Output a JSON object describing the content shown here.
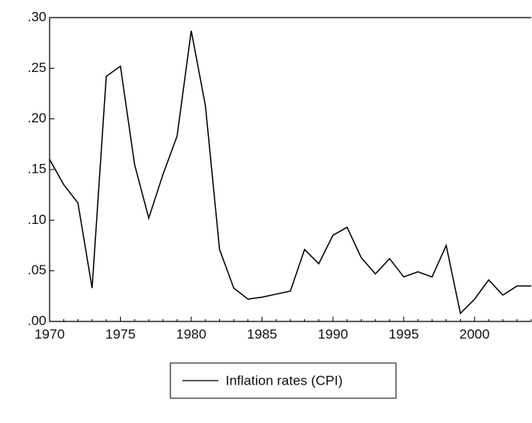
{
  "chart_data": {
    "type": "line",
    "x": [
      1970,
      1971,
      1972,
      1973,
      1974,
      1975,
      1976,
      1977,
      1978,
      1979,
      1980,
      1981,
      1982,
      1983,
      1984,
      1985,
      1986,
      1987,
      1988,
      1989,
      1990,
      1991,
      1992,
      1993,
      1994,
      1995,
      1996,
      1997,
      1998,
      1999,
      2000,
      2001,
      2002,
      2003,
      2004
    ],
    "series": [
      {
        "name": "Inflation rates (CPI)",
        "color": "#000000",
        "values": [
          0.16,
          0.135,
          0.117,
          0.033,
          0.242,
          0.252,
          0.155,
          0.102,
          0.145,
          0.183,
          0.287,
          0.213,
          0.071,
          0.033,
          0.022,
          0.024,
          0.027,
          0.03,
          0.071,
          0.057,
          0.085,
          0.093,
          0.063,
          0.047,
          0.062,
          0.044,
          0.049,
          0.044,
          0.075,
          0.008,
          0.022,
          0.041,
          0.026,
          0.035,
          0.035
        ]
      }
    ],
    "xlim": [
      1970,
      2004
    ],
    "xticks": [
      1970,
      1975,
      1980,
      1985,
      1990,
      1995,
      2000
    ],
    "ylim": [
      0,
      0.3
    ],
    "yticks": [
      {
        "value": 0,
        "label": ".00"
      },
      {
        "value": 0.05,
        "label": ".05"
      },
      {
        "value": 0.1,
        "label": ".10"
      },
      {
        "value": 0.15,
        "label": ".15"
      },
      {
        "value": 0.2,
        "label": ".20"
      },
      {
        "value": 0.25,
        "label": ".25"
      },
      {
        "value": 0.3,
        "label": ".30"
      }
    ],
    "legend": "bottom"
  }
}
